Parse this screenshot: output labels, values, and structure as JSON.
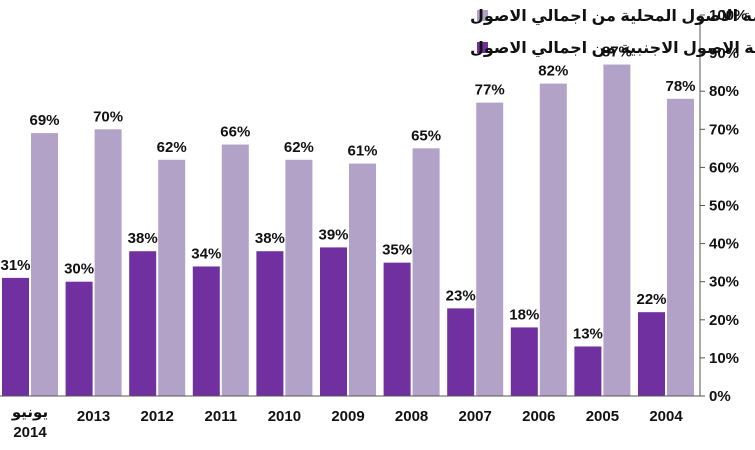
{
  "chart_data": {
    "type": "bar",
    "categories": [
      "يونيو 2014",
      "2013",
      "2012",
      "2011",
      "2010",
      "2009",
      "2008",
      "2007",
      "2006",
      "2005",
      "2004"
    ],
    "series": [
      {
        "name": "نسبة مساهمة الاصول الاجنبية من اجمالي الاصول",
        "color": "#7030a0",
        "values": [
          31,
          30,
          38,
          34,
          38,
          39,
          35,
          23,
          18,
          13,
          22
        ],
        "labels": [
          "31%",
          "30%",
          "38%",
          "34%",
          "38%",
          "39%",
          "35%",
          "23%",
          "18%",
          "13%",
          "22%"
        ]
      },
      {
        "name": "نسبة مساهمة الاصول المحلية من اجمالي الاصول",
        "color": "#b3a2c7",
        "values": [
          69,
          70,
          62,
          66,
          62,
          61,
          65,
          77,
          82,
          87,
          78
        ],
        "labels": [
          "69%",
          "70%",
          "62%",
          "66%",
          "62%",
          "61%",
          "65%",
          "77%",
          "82%",
          "87%",
          "78%"
        ]
      }
    ],
    "ylim": [
      0,
      100
    ],
    "yticks": [
      "0%",
      "10%",
      "20%",
      "30%",
      "40%",
      "50%",
      "60%",
      "70%",
      "80%",
      "90%",
      "100%"
    ],
    "yaxis_position": "right",
    "legend_position": "top",
    "grid": false
  }
}
